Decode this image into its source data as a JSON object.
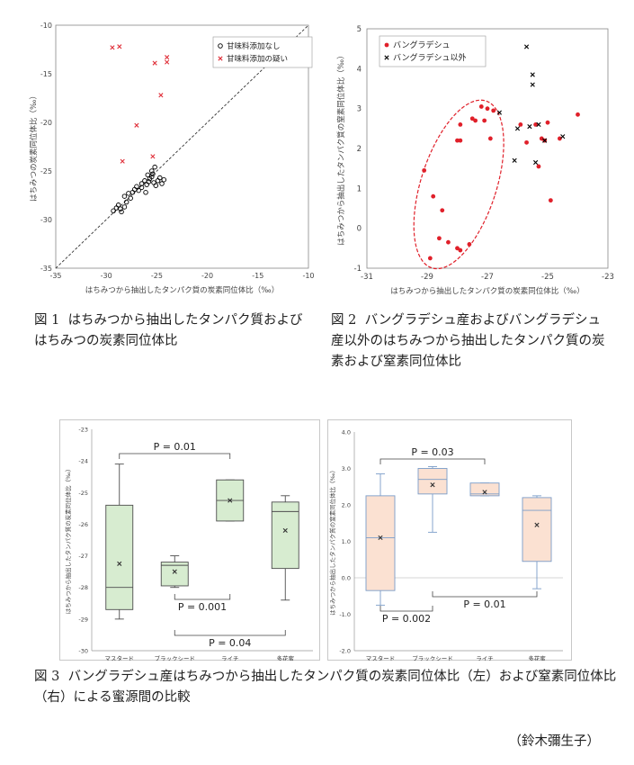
{
  "fig1": {
    "caption_num": "図 1",
    "caption": "はちみつから抽出したタンパク質およびはちみつの炭素同位体比",
    "chart_data": {
      "type": "scatter",
      "xlabel": "はちみつから抽出したタンパク質の炭素同位体比（‰）",
      "ylabel": "はちみつの炭素同位体比（‰）",
      "xlim": [
        -35,
        -10
      ],
      "ylim": [
        -35,
        -10
      ],
      "xticks": [
        "-35",
        "-30",
        "-25",
        "-20",
        "-15",
        "-10"
      ],
      "yticks": [
        "-35",
        "-30",
        "-25",
        "-20",
        "-15",
        "-10"
      ],
      "legend_position": "top-right",
      "diagonal": "y=x dashed",
      "series": [
        {
          "name": "甘味料添加なし",
          "marker": "circle",
          "color": "#000000",
          "points": [
            [
              -29.3,
              -29.1
            ],
            [
              -29.0,
              -28.8
            ],
            [
              -28.8,
              -28.5
            ],
            [
              -28.6,
              -28.9
            ],
            [
              -28.5,
              -29.2
            ],
            [
              -28.2,
              -28.7
            ],
            [
              -28.0,
              -28.2
            ],
            [
              -28.2,
              -27.6
            ],
            [
              -27.8,
              -27.3
            ],
            [
              -27.6,
              -27.8
            ],
            [
              -27.4,
              -27.2
            ],
            [
              -27.2,
              -26.9
            ],
            [
              -27.0,
              -26.6
            ],
            [
              -26.8,
              -27.0
            ],
            [
              -26.5,
              -26.3
            ],
            [
              -26.2,
              -26.0
            ],
            [
              -26.0,
              -26.4
            ],
            [
              -25.8,
              -26.1
            ],
            [
              -25.7,
              -25.8
            ],
            [
              -25.5,
              -25.6
            ],
            [
              -25.3,
              -26.2
            ],
            [
              -25.1,
              -26.5
            ],
            [
              -24.9,
              -26.0
            ],
            [
              -24.7,
              -25.7
            ],
            [
              -24.5,
              -26.3
            ],
            [
              -24.3,
              -25.9
            ],
            [
              -25.5,
              -25.0
            ],
            [
              -25.2,
              -24.6
            ],
            [
              -26.5,
              -26.7
            ],
            [
              -26.1,
              -27.2
            ],
            [
              -25.9,
              -25.4
            ],
            [
              -25.4,
              -25.3
            ]
          ]
        },
        {
          "name": "甘味料添加の疑い",
          "marker": "x",
          "color": "#e0303a",
          "points": [
            [
              -29.4,
              -12.3
            ],
            [
              -28.7,
              -12.2
            ],
            [
              -25.2,
              -13.9
            ],
            [
              -24.0,
              -13.3
            ],
            [
              -24.0,
              -13.8
            ],
            [
              -24.6,
              -17.2
            ],
            [
              -27.0,
              -20.3
            ],
            [
              -28.4,
              -24.0
            ],
            [
              -25.4,
              -23.5
            ]
          ]
        }
      ]
    }
  },
  "fig2": {
    "caption_num": "図 2",
    "caption": "バングラデシュ産およびバングラデシュ産以外のはちみつから抽出したタンパク質の炭素および窒素同位体比",
    "chart_data": {
      "type": "scatter",
      "xlabel": "はちみつから抽出したタンパク質の炭素同位体比（‰）",
      "ylabel": "はちみつから抽出したタンパク質の窒素同位体比（‰）",
      "xlim": [
        -31,
        -23
      ],
      "ylim": [
        -1,
        5
      ],
      "xticks": [
        "-31",
        "-29",
        "-27",
        "-25",
        "-23"
      ],
      "yticks": [
        "-1",
        "0",
        "1",
        "2",
        "3",
        "4",
        "5"
      ],
      "legend_position": "top-left",
      "series": [
        {
          "name": "バングラデシュ",
          "marker": "dot",
          "color": "#e0202a",
          "points": [
            [
              -29.1,
              1.45
            ],
            [
              -28.8,
              0.8
            ],
            [
              -28.5,
              0.45
            ],
            [
              -28.6,
              -0.25
            ],
            [
              -28.3,
              -0.35
            ],
            [
              -28.0,
              -0.5
            ],
            [
              -27.9,
              -0.55
            ],
            [
              -27.6,
              -0.4
            ],
            [
              -28.9,
              -0.75
            ],
            [
              -27.9,
              2.2
            ],
            [
              -28.0,
              2.2
            ],
            [
              -27.9,
              2.6
            ],
            [
              -27.5,
              2.75
            ],
            [
              -27.4,
              2.7
            ],
            [
              -27.1,
              2.7
            ],
            [
              -27.2,
              3.05
            ],
            [
              -27.0,
              3.0
            ],
            [
              -26.8,
              2.95
            ],
            [
              -26.9,
              2.25
            ],
            [
              -25.9,
              2.6
            ],
            [
              -25.7,
              2.15
            ],
            [
              -25.4,
              2.6
            ],
            [
              -25.3,
              1.55
            ],
            [
              -25.1,
              2.2
            ],
            [
              -25.2,
              2.25
            ],
            [
              -25.0,
              2.65
            ],
            [
              -24.9,
              0.7
            ],
            [
              -24.0,
              2.85
            ],
            [
              -24.6,
              2.25
            ]
          ]
        },
        {
          "name": "バングラデシュ以外",
          "marker": "x",
          "color": "#000000",
          "points": [
            [
              -26.6,
              2.9
            ],
            [
              -26.1,
              1.7
            ],
            [
              -25.7,
              4.55
            ],
            [
              -25.5,
              3.85
            ],
            [
              -25.5,
              3.6
            ],
            [
              -25.3,
              2.6
            ],
            [
              -25.1,
              2.2
            ],
            [
              -24.5,
              2.3
            ],
            [
              -25.4,
              1.65
            ],
            [
              -25.6,
              2.55
            ],
            [
              -26.0,
              2.5
            ]
          ]
        }
      ],
      "annotation": "バングラデシュ群を囲む赤い破線の楕円"
    }
  },
  "fig3": {
    "caption_num": "図 3",
    "caption": "バングラデシュ産はちみつから抽出したタンパク質の炭素同位体比（左）および窒素同位体比（右）による蜜源間の比較",
    "chart_data": [
      {
        "type": "box",
        "ylabel": "はちみつから抽出したタンパク質の炭素同位体比（‰）",
        "ylim": [
          -30,
          -23
        ],
        "yticks": [
          "-23",
          "-24",
          "-25",
          "-26",
          "-27",
          "-28",
          "-29",
          "-30"
        ],
        "categories": [
          "マスタード",
          "ブラックシード",
          "ライチ",
          "多花蜜"
        ],
        "box_color": "#d7ecd0",
        "boxes": [
          {
            "min": -29.0,
            "q1": -28.7,
            "median": -28.0,
            "q3": -25.4,
            "max": -24.1,
            "mean": -27.25
          },
          {
            "min": -28.0,
            "q1": -27.95,
            "median": -27.3,
            "q3": -27.2,
            "max": -27.0,
            "mean": -27.5
          },
          {
            "min": -25.9,
            "q1": -25.9,
            "median": -25.25,
            "q3": -24.6,
            "max": -24.6,
            "mean": -25.25
          },
          {
            "min": -28.4,
            "q1": -27.4,
            "median": -25.6,
            "q3": -25.3,
            "max": -25.1,
            "mean": -26.2
          }
        ],
        "annotations": [
          {
            "label": "P = 0.01",
            "from": 0,
            "to": 2,
            "side": "top"
          },
          {
            "label": "P = 0.001",
            "from": 1,
            "to": 2,
            "side": "bottom"
          },
          {
            "label": "P = 0.04",
            "from": 1,
            "to": 3,
            "side": "bottom"
          }
        ]
      },
      {
        "type": "box",
        "ylabel": "はちみつから抽出したタンパク質の窒素同位体比（‰）",
        "ylim": [
          -2.0,
          4.0
        ],
        "yticks": [
          "4.0",
          "3.0",
          "2.0",
          "1.0",
          "0.0",
          "-1.0",
          "-2.0"
        ],
        "categories": [
          "マスタード",
          "ブラックシード",
          "ライチ",
          "多花蜜"
        ],
        "box_color": "#fbe1d2",
        "boxes": [
          {
            "min": -0.75,
            "q1": -0.35,
            "median": 1.1,
            "q3": 2.25,
            "max": 2.85,
            "mean": 1.1
          },
          {
            "min": 1.25,
            "q1": 2.3,
            "median": 2.7,
            "q3": 3.0,
            "max": 3.05,
            "mean": 2.55
          },
          {
            "min": 2.25,
            "q1": 2.25,
            "median": 2.3,
            "q3": 2.6,
            "max": 2.6,
            "mean": 2.35
          },
          {
            "min": -0.3,
            "q1": 0.45,
            "median": 1.85,
            "q3": 2.2,
            "max": 2.25,
            "mean": 1.45
          }
        ],
        "annotations": [
          {
            "label": "P = 0.03",
            "from": 0,
            "to": 2,
            "side": "top"
          },
          {
            "label": "P = 0.002",
            "from": 0,
            "to": 1,
            "side": "bottom"
          },
          {
            "label": "P = 0.01",
            "from": 1,
            "to": 3,
            "side": "bottom"
          }
        ]
      }
    ]
  },
  "author": "（鈴木彌生子）"
}
